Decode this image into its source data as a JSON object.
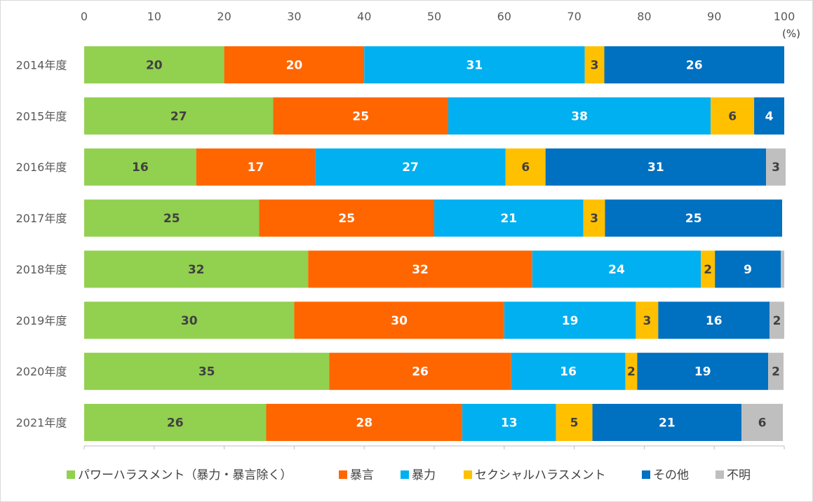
{
  "chart_data": {
    "type": "bar",
    "orientation": "horizontal",
    "stacked": true,
    "percent": true,
    "unit_label": "(%)",
    "x_ticks": [
      "0",
      "10",
      "20",
      "30",
      "40",
      "50",
      "60",
      "70",
      "80",
      "90",
      "100"
    ],
    "xlim": [
      0,
      100
    ],
    "grid": false,
    "legend_position": "bottom",
    "categories": [
      "2014年度",
      "2015年度",
      "2016年度",
      "2017年度",
      "2018年度",
      "2019年度",
      "2020年度",
      "2021年度"
    ],
    "series": [
      {
        "name": "パワーハラスメント（暴力・暴言除く）",
        "color": "#92d050",
        "label_color": "#404040",
        "values": [
          20,
          27,
          16,
          25,
          32,
          30,
          35,
          26
        ],
        "labels": [
          "20",
          "27",
          "16",
          "25",
          "32",
          "30",
          "35",
          "26"
        ]
      },
      {
        "name": "暴言",
        "color": "#ff6600",
        "label_color": "#ffffff",
        "values": [
          20,
          25,
          17,
          25,
          32,
          30,
          26,
          28
        ],
        "labels": [
          "20",
          "25",
          "17",
          "25",
          "32",
          "30",
          "26",
          "28"
        ]
      },
      {
        "name": "暴力",
        "color": "#00b0f0",
        "label_color": "#ffffff",
        "values": [
          31.5,
          37.5,
          27.2,
          21.3,
          24.1,
          18.8,
          16.3,
          13.4
        ],
        "labels": [
          "31",
          "38",
          "27",
          "21",
          "24",
          "19",
          "16",
          "13"
        ]
      },
      {
        "name": "セクシャルハラスメント",
        "color": "#ffc000",
        "label_color": "#404040",
        "values": [
          2.8,
          6.2,
          5.7,
          3.1,
          2,
          3.2,
          1.7,
          5.2
        ],
        "labels": [
          "3",
          "6",
          "6",
          "3",
          "2",
          "3",
          "2",
          "5"
        ]
      },
      {
        "name": "その他",
        "color": "#0070c0",
        "label_color": "#ffffff",
        "values": [
          25.7,
          4.3,
          31.5,
          25.3,
          9.4,
          15.9,
          18.7,
          21.3
        ],
        "labels": [
          "26",
          "4",
          "31",
          "25",
          "9",
          "16",
          "19",
          "21"
        ]
      },
      {
        "name": "不明",
        "color": "#bfbfbf",
        "label_color": "#404040",
        "values": [
          0,
          0,
          2.8,
          0,
          0.5,
          2.1,
          2.2,
          5.9
        ],
        "labels": [
          "",
          "",
          "3",
          "",
          "",
          "2",
          "2",
          "6"
        ]
      }
    ]
  }
}
